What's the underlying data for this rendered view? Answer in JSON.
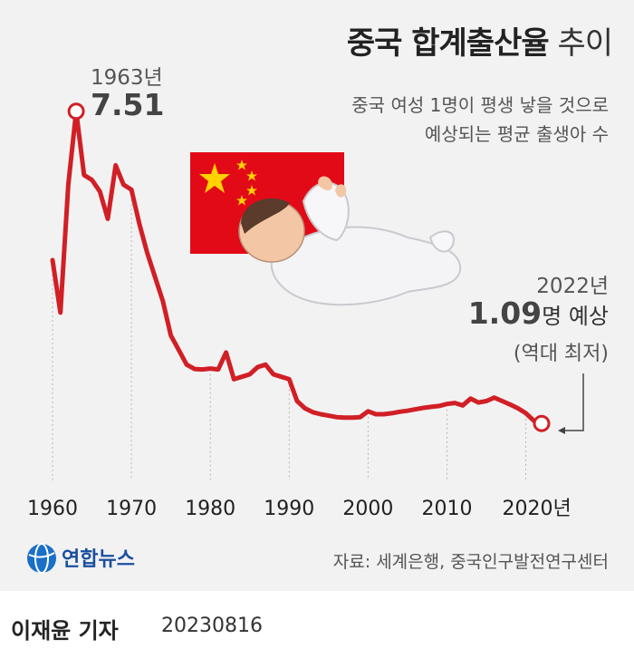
{
  "title": {
    "bold": "중국 합계출산율",
    "light": "추이"
  },
  "subtitle": {
    "line1": "중국 여성 1명이 평생 낳을 것으로",
    "line2": "예상되는 평균 출생아 수"
  },
  "annotations": {
    "peak_year": "1963년",
    "peak_value": "7.51",
    "latest_year": "2022년",
    "latest_value": "1.09",
    "latest_suffix": "명 예상",
    "latest_note": "(역대 최저)"
  },
  "source": "자료: 세계은행, 중국인구발전연구센터",
  "logo": {
    "text": "연합뉴스"
  },
  "footer": {
    "reporter": "이재윤 기자",
    "date": "20230816"
  },
  "colors": {
    "line": "#d11f26",
    "background": "#f2f2f2",
    "flag_red": "#e30a17",
    "flag_star": "#ffd200"
  },
  "illustration": {
    "flag": "china-flag",
    "figure": "sleeping-baby"
  },
  "chart_data": {
    "type": "line",
    "title": "중국 합계출산율 추이",
    "xlabel": "",
    "ylabel": "",
    "xlim": [
      1960,
      2022
    ],
    "ylim": [
      1.0,
      7.6
    ],
    "x_ticks": [
      1960,
      1970,
      1980,
      1990,
      2000,
      2010,
      2020
    ],
    "x_tick_labels": [
      "1960",
      "1970",
      "1980",
      "1990",
      "2000",
      "2010",
      "2020년"
    ],
    "grid": false,
    "series": [
      {
        "name": "",
        "x": [
          1960,
          1961,
          1962,
          1963,
          1964,
          1965,
          1966,
          1967,
          1968,
          1969,
          1970,
          1971,
          1972,
          1973,
          1974,
          1975,
          1976,
          1977,
          1978,
          1979,
          1980,
          1981,
          1982,
          1983,
          1984,
          1985,
          1986,
          1987,
          1988,
          1989,
          1990,
          1991,
          1992,
          1993,
          1994,
          1995,
          1996,
          1997,
          1998,
          1999,
          2000,
          2001,
          2002,
          2003,
          2004,
          2005,
          2006,
          2007,
          2008,
          2009,
          2010,
          2011,
          2012,
          2013,
          2014,
          2015,
          2016,
          2017,
          2018,
          2019,
          2020,
          2021,
          2022
        ],
        "y": [
          4.45,
          3.37,
          6.0,
          7.51,
          6.2,
          6.1,
          5.86,
          5.3,
          6.4,
          6.0,
          5.9,
          5.2,
          4.6,
          4.1,
          3.6,
          2.9,
          2.6,
          2.3,
          2.21,
          2.2,
          2.22,
          2.2,
          2.55,
          2.0,
          2.05,
          2.1,
          2.25,
          2.3,
          2.1,
          2.05,
          2.0,
          1.55,
          1.4,
          1.32,
          1.28,
          1.25,
          1.22,
          1.21,
          1.21,
          1.22,
          1.34,
          1.28,
          1.28,
          1.3,
          1.33,
          1.35,
          1.38,
          1.41,
          1.43,
          1.45,
          1.49,
          1.51,
          1.46,
          1.6,
          1.52,
          1.55,
          1.62,
          1.55,
          1.48,
          1.4,
          1.3,
          1.15,
          1.09
        ]
      }
    ]
  }
}
